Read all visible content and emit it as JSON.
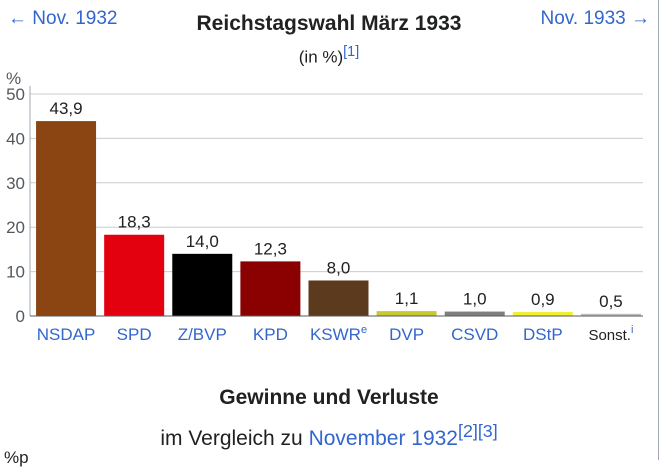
{
  "nav": {
    "prev_label": "← Nov. 1932",
    "next_label": "Nov. 1933 →"
  },
  "header": {
    "title": "Reichstagswahl März 1933",
    "subtitle": "(in %)",
    "subtitle_ref": "[1]"
  },
  "chart_data": {
    "type": "bar",
    "title": "Reichstagswahl März 1933",
    "subtitle": "(in %)",
    "ylabel": "%",
    "xlabel": "",
    "ylim": [
      0,
      50
    ],
    "yticks": [
      0,
      10,
      20,
      30,
      40,
      50
    ],
    "grid": true,
    "categories": [
      "NSDAP",
      "SPD",
      "Z/BVP",
      "KPD",
      "KSWR",
      "DVP",
      "CSVD",
      "DStP",
      "Sonst."
    ],
    "category_sup": [
      "",
      "",
      "",
      "",
      "e",
      "",
      "",
      "",
      "i"
    ],
    "values": [
      43.9,
      18.3,
      14.0,
      12.3,
      8.0,
      1.1,
      1.0,
      0.9,
      0.5
    ],
    "value_labels": [
      "43,9",
      "18,3",
      "14,0",
      "12,3",
      "8,0",
      "1,1",
      "1,0",
      "0,9",
      "0,5"
    ],
    "colors": [
      "#8B4513",
      "#E3000F",
      "#000000",
      "#8B0000",
      "#5C3A1E",
      "#C8C830",
      "#7F7F7F",
      "#F0F030",
      "#BFBFBF"
    ],
    "linked_categories": [
      true,
      true,
      true,
      true,
      true,
      true,
      true,
      true,
      false
    ]
  },
  "section2": {
    "title": "Gewinne und Verluste",
    "prefix": "im Vergleich zu ",
    "link": "November 1932",
    "refs": "[2][3]",
    "unit_cut": "%p"
  }
}
